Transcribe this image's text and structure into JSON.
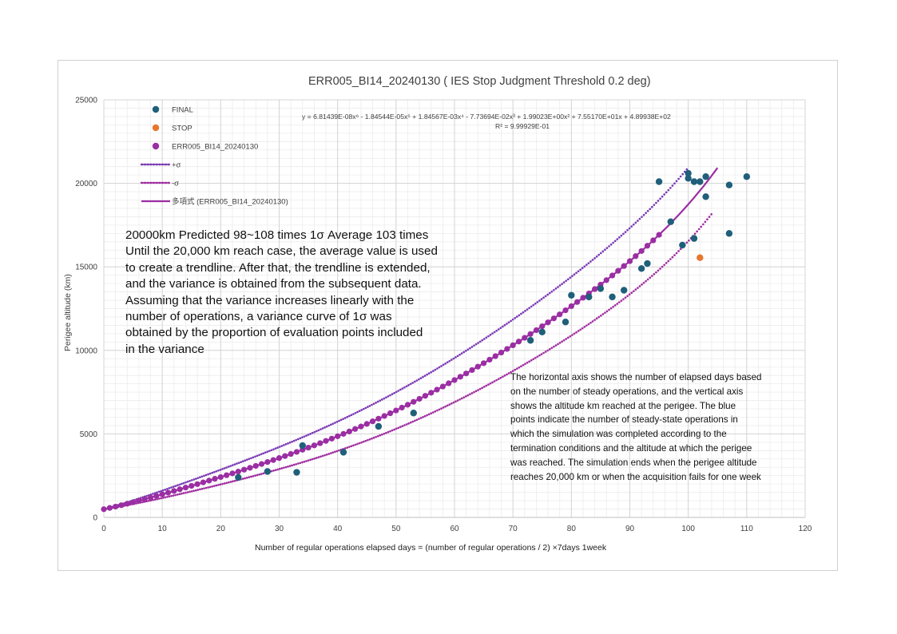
{
  "chart_data": {
    "type": "scatter",
    "title": "ERR005_BI14_20240130 ( IES Stop Judgment Threshold 0.2 deg)",
    "xlabel": "Number of regular operations elapsed days = (number of regular operations / 2)  ×7days 1week",
    "ylabel": "Perigee altitude (km)",
    "xlim": [
      0,
      120
    ],
    "ylim": [
      0,
      25000
    ],
    "x_ticks": [
      0,
      10,
      20,
      30,
      40,
      50,
      60,
      70,
      80,
      90,
      100,
      110,
      120
    ],
    "y_ticks": [
      0,
      5000,
      10000,
      15000,
      20000,
      25000
    ],
    "y_tick_labels": [
      "0",
      "5000",
      "10000",
      "15000",
      "20000",
      "25000"
    ],
    "grid": true,
    "legend_position": "top-left",
    "trendline_equation": "y = 6.81439E-08x⁶ - 1.84544E-05x⁵ + 1.84567E-03x⁴ - 7.73694E-02x³ + 1.99023E+00x² + 7.55170E+01x + 4.89938E+02",
    "r_squared": "R² = 9.99929E-01",
    "series": [
      {
        "name": "FINAL",
        "marker": "circle",
        "color": "#1f5f7a",
        "points": [
          [
            23,
            2400
          ],
          [
            28,
            2750
          ],
          [
            33,
            2700
          ],
          [
            34,
            4300
          ],
          [
            41,
            3900
          ],
          [
            47,
            5450
          ],
          [
            53,
            6250
          ],
          [
            73,
            10600
          ],
          [
            75,
            11100
          ],
          [
            79,
            11700
          ],
          [
            80,
            13300
          ],
          [
            83,
            13200
          ],
          [
            85,
            13700
          ],
          [
            87,
            13200
          ],
          [
            89,
            13600
          ],
          [
            92,
            14900
          ],
          [
            93,
            15200
          ],
          [
            95,
            20100
          ],
          [
            97,
            17700
          ],
          [
            99,
            16300
          ],
          [
            100,
            20600
          ],
          [
            100,
            20300
          ],
          [
            101,
            16700
          ],
          [
            101,
            20100
          ],
          [
            102,
            20100
          ],
          [
            103,
            19200
          ],
          [
            103,
            20400
          ],
          [
            107,
            19900
          ],
          [
            107,
            17000
          ],
          [
            110,
            20400
          ]
        ]
      },
      {
        "name": "STOP",
        "marker": "circle",
        "color": "#e8772e",
        "points": [
          [
            102,
            15550
          ]
        ]
      },
      {
        "name": "ERR005_BI14_20240130",
        "marker": "circle",
        "color": "#9b2ea3",
        "x_range": [
          0,
          95
        ]
      },
      {
        "name": "+σ",
        "style": "dotted",
        "color": "#7a3ab5",
        "x_range": [
          0,
          100
        ]
      },
      {
        "name": "-σ",
        "style": "dotted",
        "color": "#a02ea0",
        "x_range": [
          0,
          104
        ]
      },
      {
        "name": "多項式 (ERR005_BI14_20240130)",
        "style": "solid",
        "color": "#9b2ea3",
        "x_range": [
          0,
          105
        ]
      }
    ]
  },
  "notes": {
    "left_lines": [
      "20000km Predicted 98~108 times 1σ Average 103 times",
      "Until the 20,000 km reach case, the average value is used",
      "to create a trendline. After that, the trendline is extended,",
      "and the variance is obtained from the subsequent data.",
      "Assuming that the variance increases linearly with the",
      "number of operations, a variance curve of 1σ was",
      "obtained by the proportion of evaluation points included",
      "in the variance"
    ],
    "right_lines": [
      "The horizontal axis shows the number of elapsed days based",
      "on the number of steady operations, and the vertical axis",
      "shows the altitude km reached at the perigee. The blue",
      "points indicate the number of steady-state operations in",
      "which the simulation was completed according to the",
      "termination conditions and the altitude at which the perigee",
      "was reached. The simulation ends when the perigee altitude",
      "reaches 20,000 km or when the acquisition fails for one week"
    ]
  }
}
